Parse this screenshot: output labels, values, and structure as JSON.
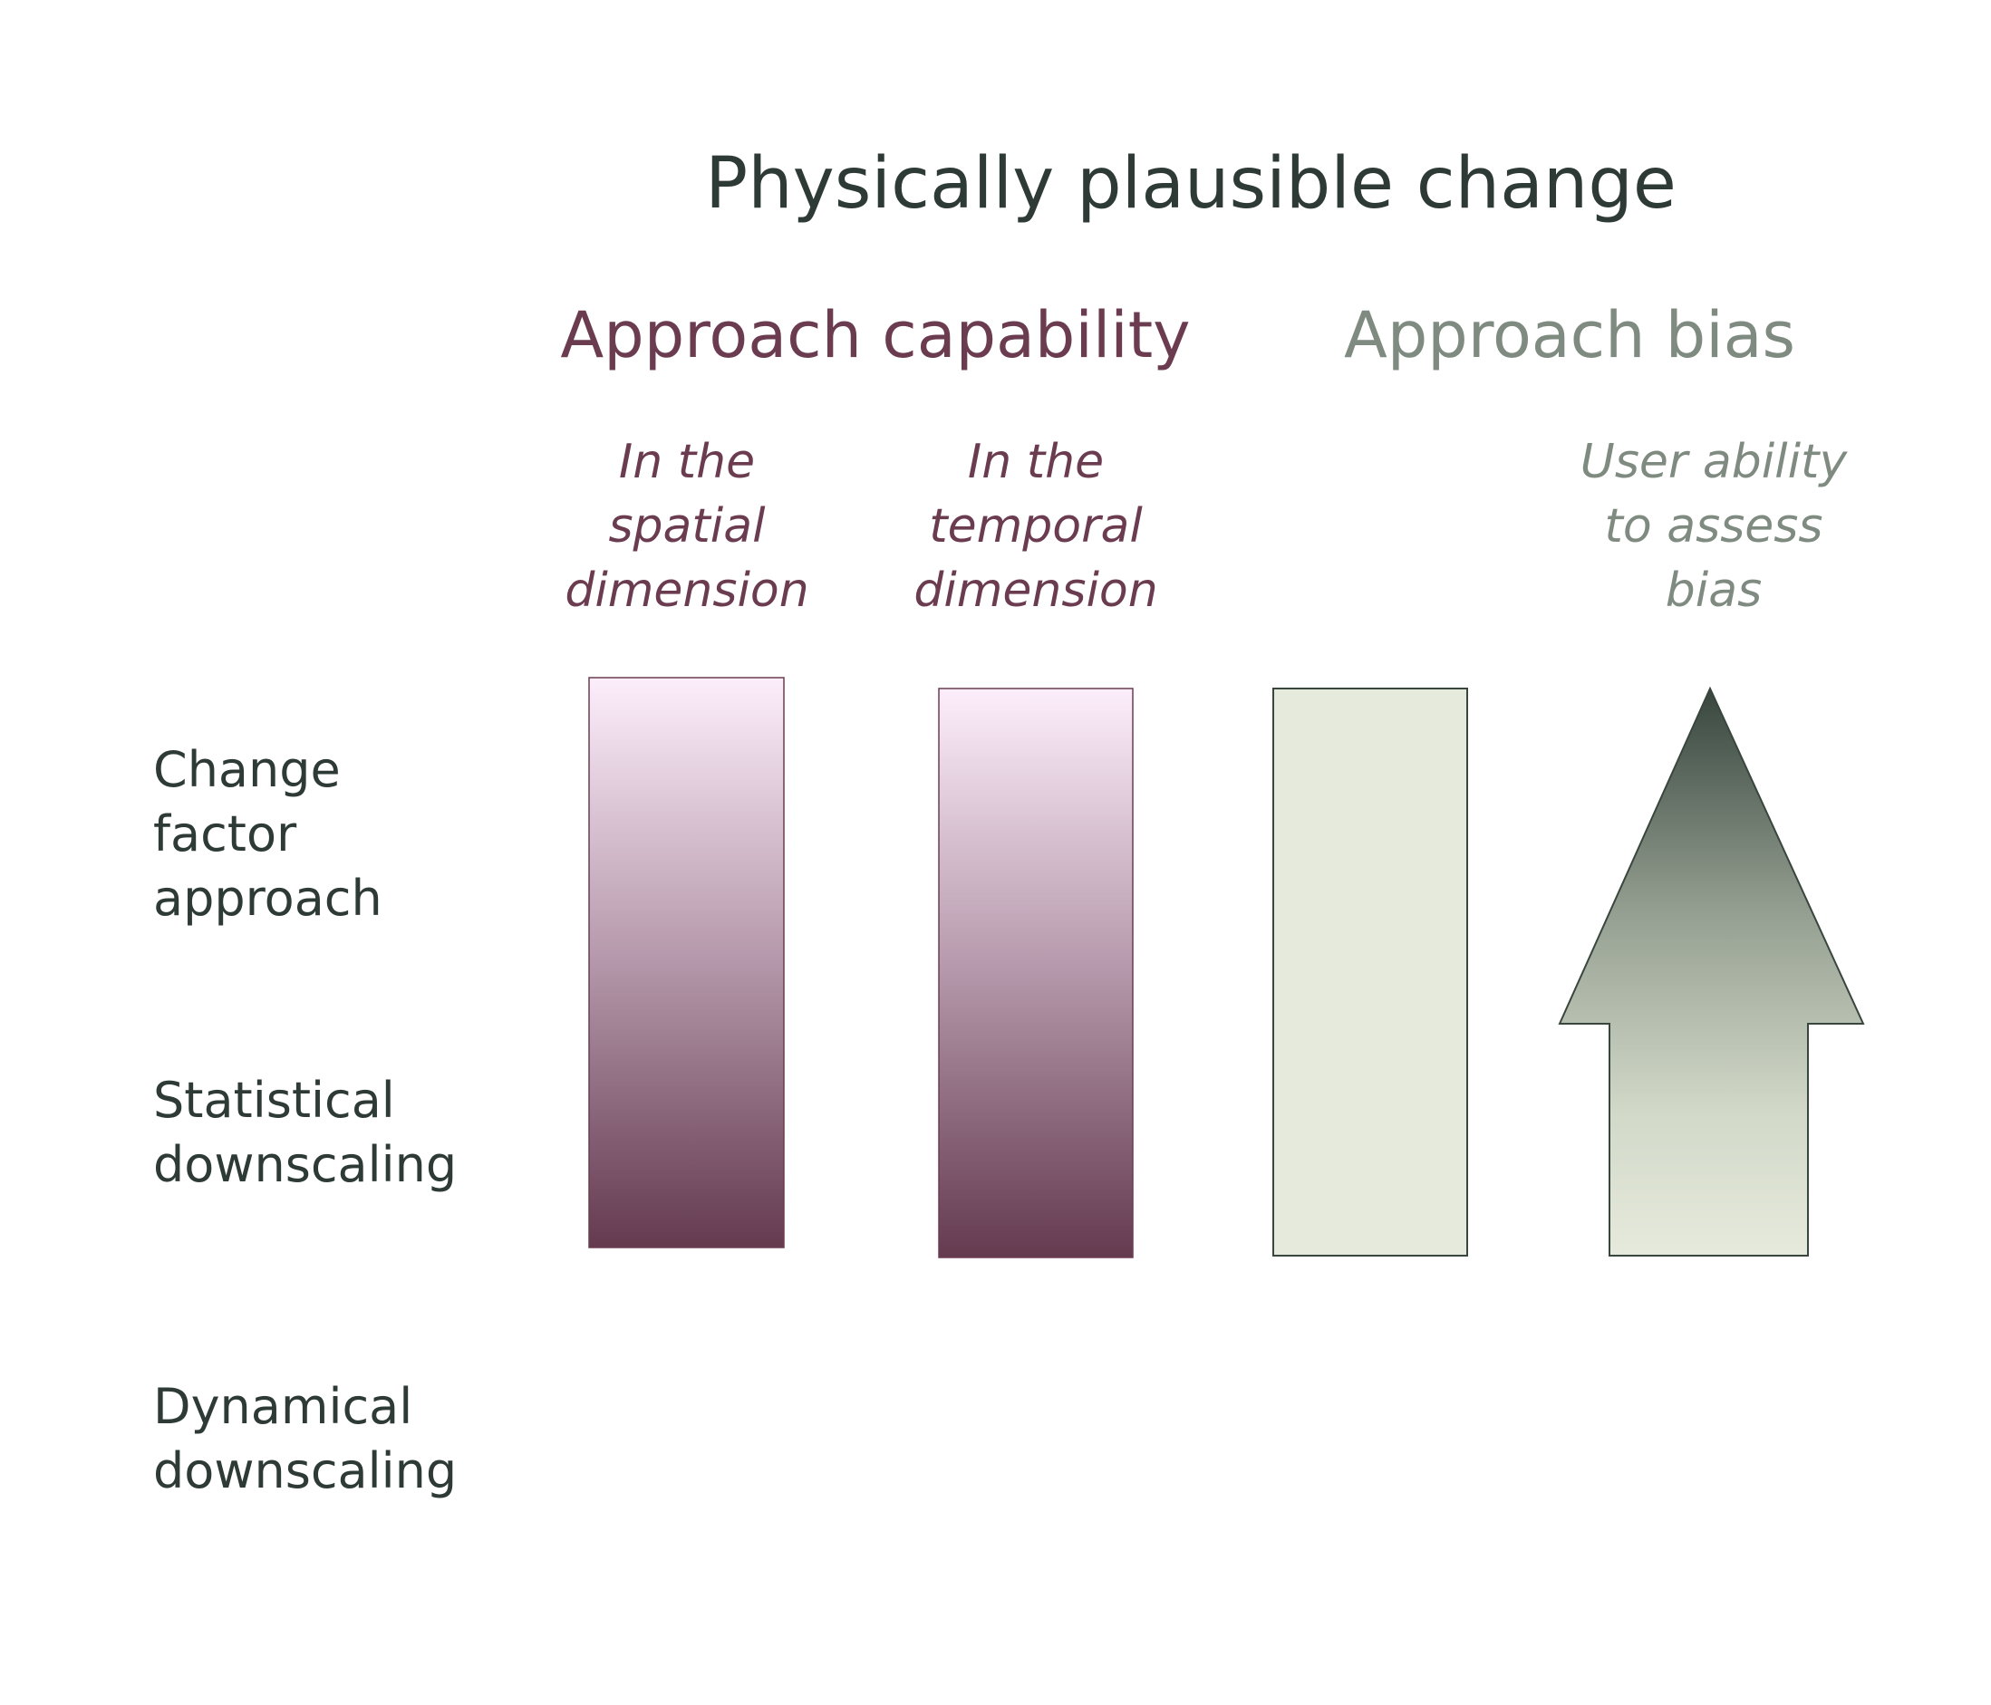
{
  "title": "Physically plausible change",
  "groups": {
    "capability": {
      "label": "Approach capability",
      "color": "#6b3c50",
      "columns": [
        {
          "lines": [
            "In the",
            "spatial",
            "dimension"
          ]
        },
        {
          "lines": [
            "In the",
            "temporal",
            "dimension"
          ]
        }
      ]
    },
    "bias": {
      "label": "Approach bias",
      "color": "#7f8a80",
      "columns": [
        {
          "lines": []
        },
        {
          "lines": [
            "User ability",
            "to assess",
            "bias"
          ]
        }
      ]
    }
  },
  "rows": [
    {
      "lines": [
        "Change",
        "factor",
        "approach"
      ]
    },
    {
      "lines": [
        "Statistical",
        "downscaling"
      ]
    },
    {
      "lines": [
        "Dynamical",
        "downscaling"
      ]
    }
  ]
}
